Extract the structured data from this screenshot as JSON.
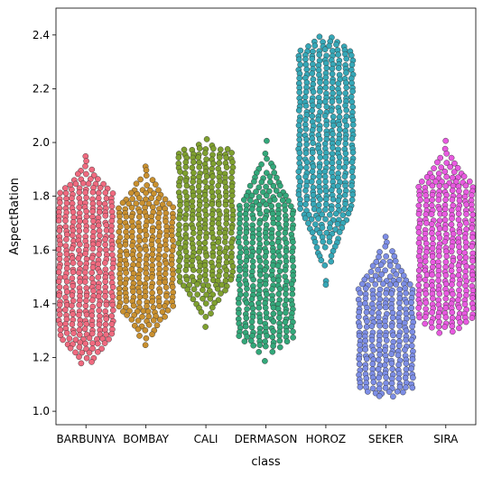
{
  "chart_data": {
    "type": "scatter",
    "subtype": "swarm",
    "xlabel": "class",
    "ylabel": "AspectRation",
    "ylim": [
      0.95,
      2.5
    ],
    "yticks": [
      "1.0",
      "1.2",
      "1.4",
      "1.6",
      "1.8",
      "2.0",
      "2.2",
      "2.4"
    ],
    "grid": false,
    "legend": "none",
    "categories": [
      "BARBUNYA",
      "BOMBAY",
      "CALI",
      "DERMASON",
      "HOROZ",
      "SEKER",
      "SIRA"
    ],
    "series": [
      {
        "category": "BARBUNYA",
        "color": "#ef6a7f",
        "range": [
          1.13,
          1.95
        ],
        "core": [
          1.28,
          1.81
        ]
      },
      {
        "category": "BOMBAY",
        "color": "#c9902f",
        "range": [
          1.22,
          1.93
        ],
        "core": [
          1.39,
          1.76
        ]
      },
      {
        "category": "CALI",
        "color": "#7fa02f",
        "range": [
          1.3,
          2.01
        ],
        "core": [
          1.49,
          1.97
        ]
      },
      {
        "category": "DERMASON",
        "color": "#33a87a",
        "range": [
          1.19,
          2.01
        ],
        "core": [
          1.27,
          1.76
        ]
      },
      {
        "category": "HOROZ",
        "color": "#36a8b8",
        "range": [
          1.46,
          2.43
        ],
        "core": [
          1.76,
          2.34
        ]
      },
      {
        "category": "SEKER",
        "color": "#7d8ee6",
        "range": [
          1.03,
          1.68
        ],
        "core": [
          1.08,
          1.46
        ]
      },
      {
        "category": "SIRA",
        "color": "#e85ae0",
        "range": [
          1.26,
          2.01
        ],
        "core": [
          1.34,
          1.84
        ]
      }
    ]
  }
}
